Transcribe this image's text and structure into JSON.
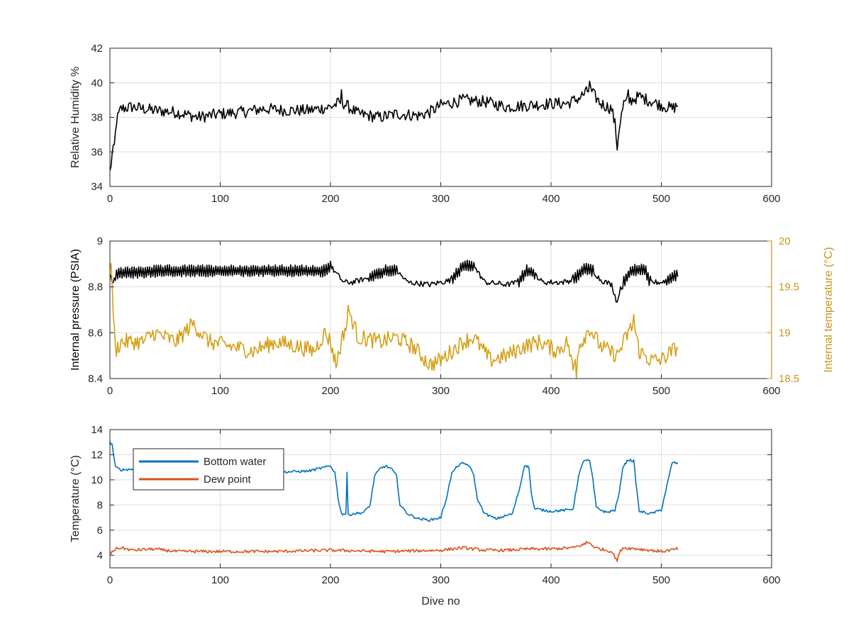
{
  "chart_data": [
    {
      "type": "line",
      "xlim": [
        0,
        600
      ],
      "ylim": [
        34,
        42
      ],
      "x_ticks": [
        0,
        100,
        200,
        300,
        400,
        500,
        600
      ],
      "y_ticks": [
        34,
        36,
        38,
        40,
        42
      ],
      "xlabel": "",
      "ylabel": "Relative Humidity %",
      "grid": true,
      "series": [
        {
          "color": "#000000",
          "noise": 0.35,
          "points": [
            [
              0,
              34.8
            ],
            [
              2,
              35.8
            ],
            [
              4,
              36.3
            ],
            [
              6,
              37.8
            ],
            [
              10,
              38.5
            ],
            [
              20,
              38.6
            ],
            [
              40,
              38.4
            ],
            [
              60,
              38.3
            ],
            [
              80,
              38.0
            ],
            [
              100,
              38.2
            ],
            [
              120,
              38.3
            ],
            [
              140,
              38.5
            ],
            [
              160,
              38.4
            ],
            [
              180,
              38.4
            ],
            [
              200,
              38.6
            ],
            [
              210,
              38.9
            ],
            [
              225,
              38.2
            ],
            [
              245,
              38.0
            ],
            [
              260,
              38.2
            ],
            [
              280,
              38.1
            ],
            [
              290,
              38.3
            ],
            [
              300,
              38.7
            ],
            [
              320,
              39.0
            ],
            [
              340,
              38.9
            ],
            [
              360,
              38.6
            ],
            [
              380,
              38.7
            ],
            [
              400,
              38.8
            ],
            [
              415,
              38.8
            ],
            [
              425,
              39.1
            ],
            [
              435,
              39.6
            ],
            [
              445,
              38.8
            ],
            [
              455,
              38.5
            ],
            [
              458,
              37.6
            ],
            [
              460,
              36.3
            ],
            [
              462,
              37.5
            ],
            [
              466,
              38.8
            ],
            [
              480,
              39.2
            ],
            [
              500,
              38.7
            ],
            [
              510,
              38.5
            ],
            [
              515,
              38.7
            ]
          ],
          "spikes": [
            [
              435,
              40.1
            ],
            [
              210,
              39.6
            ],
            [
              470,
              39.6
            ]
          ]
        }
      ]
    },
    {
      "type": "line",
      "xlim": [
        0,
        600
      ],
      "ylim": [
        8.4,
        9
      ],
      "x_ticks": [
        0,
        100,
        200,
        300,
        400,
        500,
        600
      ],
      "y_ticks": [
        8.4,
        8.6,
        8.8,
        9
      ],
      "xlabel": "",
      "ylabel": "Internal pressure (PSIA)",
      "ylabel_right": "Internal temperature (°C)",
      "ylim_right": [
        18.5,
        20
      ],
      "y_ticks_right": [
        18.5,
        19,
        19.5,
        20
      ],
      "y_ticks_right_labels": [
        "18.5",
        "19",
        "19.5",
        "20"
      ],
      "grid": true,
      "series": [
        {
          "axis": "left",
          "color": "#000000",
          "noise": 0.012,
          "points": [
            [
              0,
              8.86
            ],
            [
              2,
              8.81
            ],
            [
              5,
              8.85
            ],
            [
              10,
              8.86
            ],
            [
              50,
              8.87
            ],
            [
              100,
              8.87
            ],
            [
              150,
              8.87
            ],
            [
              195,
              8.87
            ],
            [
              200,
              8.89
            ],
            [
              205,
              8.86
            ],
            [
              212,
              8.82
            ],
            [
              220,
              8.82
            ],
            [
              235,
              8.84
            ],
            [
              250,
              8.87
            ],
            [
              260,
              8.87
            ],
            [
              270,
              8.82
            ],
            [
              290,
              8.81
            ],
            [
              310,
              8.83
            ],
            [
              320,
              8.89
            ],
            [
              330,
              8.89
            ],
            [
              340,
              8.82
            ],
            [
              360,
              8.81
            ],
            [
              370,
              8.82
            ],
            [
              378,
              8.87
            ],
            [
              385,
              8.86
            ],
            [
              392,
              8.82
            ],
            [
              410,
              8.82
            ],
            [
              420,
              8.83
            ],
            [
              430,
              8.88
            ],
            [
              438,
              8.87
            ],
            [
              445,
              8.83
            ],
            [
              455,
              8.81
            ],
            [
              460,
              8.73
            ],
            [
              462,
              8.78
            ],
            [
              466,
              8.82
            ],
            [
              472,
              8.87
            ],
            [
              485,
              8.88
            ],
            [
              490,
              8.82
            ],
            [
              500,
              8.82
            ],
            [
              510,
              8.84
            ],
            [
              515,
              8.86
            ]
          ],
          "band_ranges": [
            [
              5,
              200
            ],
            [
              235,
              260
            ],
            [
              310,
              330
            ],
            [
              370,
              385
            ],
            [
              420,
              438
            ],
            [
              465,
              490
            ],
            [
              505,
              515
            ]
          ]
        },
        {
          "axis": "right",
          "color": "#D4A017",
          "noise": 0.09,
          "points": [
            [
              0,
              19.75
            ],
            [
              2,
              19.6
            ],
            [
              3,
              19.2
            ],
            [
              5,
              18.8
            ],
            [
              10,
              18.9
            ],
            [
              30,
              18.9
            ],
            [
              40,
              19.0
            ],
            [
              60,
              18.9
            ],
            [
              75,
              19.1
            ],
            [
              90,
              18.9
            ],
            [
              110,
              18.85
            ],
            [
              130,
              18.8
            ],
            [
              150,
              18.9
            ],
            [
              170,
              18.85
            ],
            [
              185,
              18.8
            ],
            [
              195,
              19.0
            ],
            [
              200,
              18.9
            ],
            [
              205,
              18.65
            ],
            [
              212,
              19.0
            ],
            [
              218,
              19.2
            ],
            [
              225,
              18.95
            ],
            [
              245,
              18.9
            ],
            [
              260,
              18.95
            ],
            [
              275,
              18.85
            ],
            [
              290,
              18.65
            ],
            [
              300,
              18.7
            ],
            [
              310,
              18.8
            ],
            [
              320,
              18.9
            ],
            [
              330,
              18.95
            ],
            [
              345,
              18.7
            ],
            [
              360,
              18.75
            ],
            [
              375,
              18.85
            ],
            [
              390,
              18.9
            ],
            [
              405,
              18.8
            ],
            [
              415,
              18.9
            ],
            [
              420,
              18.6
            ],
            [
              425,
              18.85
            ],
            [
              435,
              19.05
            ],
            [
              445,
              18.85
            ],
            [
              460,
              18.75
            ],
            [
              470,
              19.0
            ],
            [
              475,
              19.1
            ],
            [
              480,
              18.8
            ],
            [
              490,
              18.7
            ],
            [
              500,
              18.7
            ],
            [
              510,
              18.8
            ],
            [
              515,
              18.85
            ]
          ],
          "spikes": [
            [
              216,
              19.3
            ],
            [
              423,
              18.5
            ],
            [
              475,
              19.2
            ]
          ]
        }
      ]
    },
    {
      "type": "line",
      "xlim": [
        0,
        600
      ],
      "ylim": [
        3,
        14
      ],
      "x_ticks": [
        0,
        100,
        200,
        300,
        400,
        500,
        600
      ],
      "y_ticks": [
        4,
        6,
        8,
        10,
        12,
        14
      ],
      "xlabel": "Dive no",
      "ylabel": "Temperature (°C)",
      "grid": true,
      "legend_position": "top-left",
      "series": [
        {
          "name": "Bottom water",
          "color": "#0072BD",
          "noise": 0.1,
          "points": [
            [
              0,
              13.0
            ],
            [
              2,
              12.8
            ],
            [
              5,
              11.0
            ],
            [
              10,
              10.8
            ],
            [
              30,
              10.9
            ],
            [
              50,
              10.8
            ],
            [
              100,
              10.7
            ],
            [
              150,
              10.6
            ],
            [
              180,
              10.7
            ],
            [
              195,
              11.0
            ],
            [
              200,
              11.1
            ],
            [
              204,
              10.6
            ],
            [
              207,
              8.5
            ],
            [
              210,
              7.3
            ],
            [
              214,
              7.3
            ],
            [
              215,
              10.6
            ],
            [
              216,
              7.2
            ],
            [
              220,
              7.3
            ],
            [
              230,
              7.4
            ],
            [
              236,
              8.0
            ],
            [
              240,
              10.3
            ],
            [
              245,
              10.9
            ],
            [
              250,
              11.1
            ],
            [
              255,
              10.9
            ],
            [
              260,
              10.3
            ],
            [
              263,
              8.0
            ],
            [
              270,
              7.3
            ],
            [
              280,
              6.9
            ],
            [
              290,
              6.8
            ],
            [
              300,
              7.0
            ],
            [
              305,
              8.5
            ],
            [
              310,
              10.5
            ],
            [
              315,
              11.1
            ],
            [
              320,
              11.3
            ],
            [
              325,
              11.2
            ],
            [
              330,
              10.4
            ],
            [
              333,
              8.5
            ],
            [
              340,
              7.3
            ],
            [
              350,
              6.9
            ],
            [
              365,
              7.3
            ],
            [
              372,
              9.5
            ],
            [
              376,
              11.2
            ],
            [
              380,
              11.0
            ],
            [
              382,
              9.0
            ],
            [
              385,
              7.7
            ],
            [
              400,
              7.5
            ],
            [
              415,
              7.6
            ],
            [
              420,
              7.7
            ],
            [
              425,
              10.3
            ],
            [
              430,
              11.6
            ],
            [
              435,
              11.5
            ],
            [
              438,
              10.0
            ],
            [
              441,
              7.8
            ],
            [
              450,
              7.4
            ],
            [
              458,
              7.6
            ],
            [
              462,
              9.0
            ],
            [
              465,
              11.0
            ],
            [
              470,
              11.6
            ],
            [
              475,
              11.5
            ],
            [
              478,
              9.0
            ],
            [
              480,
              7.5
            ],
            [
              490,
              7.3
            ],
            [
              500,
              7.6
            ],
            [
              505,
              9.5
            ],
            [
              510,
              11.4
            ],
            [
              515,
              11.3
            ]
          ]
        },
        {
          "name": "Dew point",
          "color": "#D95319",
          "noise": 0.12,
          "points": [
            [
              0,
              4.1
            ],
            [
              5,
              4.5
            ],
            [
              10,
              4.6
            ],
            [
              20,
              4.4
            ],
            [
              40,
              4.5
            ],
            [
              60,
              4.3
            ],
            [
              100,
              4.3
            ],
            [
              150,
              4.3
            ],
            [
              200,
              4.4
            ],
            [
              250,
              4.3
            ],
            [
              300,
              4.4
            ],
            [
              320,
              4.6
            ],
            [
              340,
              4.4
            ],
            [
              360,
              4.4
            ],
            [
              380,
              4.5
            ],
            [
              400,
              4.5
            ],
            [
              420,
              4.6
            ],
            [
              435,
              5.0
            ],
            [
              440,
              4.6
            ],
            [
              455,
              4.3
            ],
            [
              460,
              3.6
            ],
            [
              462,
              4.2
            ],
            [
              465,
              4.6
            ],
            [
              480,
              4.5
            ],
            [
              500,
              4.3
            ],
            [
              515,
              4.5
            ]
          ],
          "spikes": [
            [
              432,
              5.1
            ],
            [
              460,
              3.5
            ]
          ]
        }
      ]
    }
  ]
}
